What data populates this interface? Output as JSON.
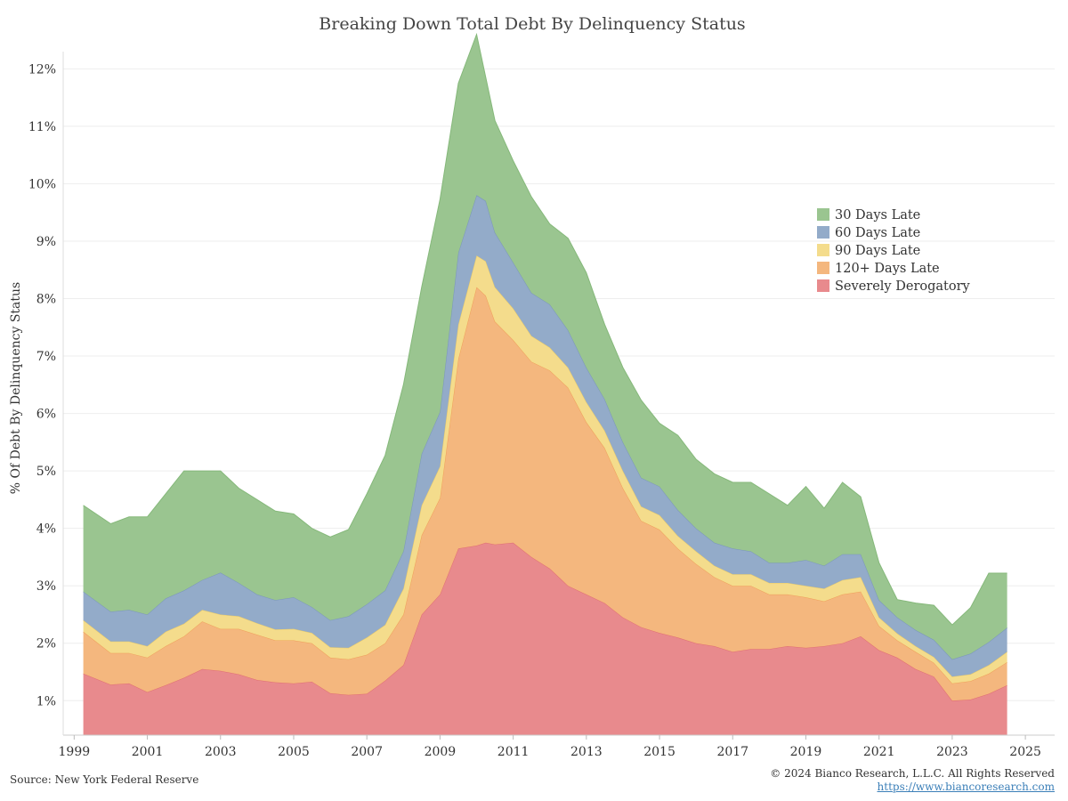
{
  "chart_data": {
    "type": "area",
    "stacked": true,
    "title": "Breaking Down Total Debt By Delinquency Status",
    "ylabel": "% Of Debt By Delinquency Status",
    "xlabel": "",
    "ylim": [
      0.4,
      12.3
    ],
    "xlim": [
      1998.7,
      2025.8
    ],
    "yticks": [
      1,
      2,
      3,
      4,
      5,
      6,
      7,
      8,
      9,
      10,
      11,
      12
    ],
    "ytick_labels": [
      "1%",
      "2%",
      "3%",
      "4%",
      "5%",
      "6%",
      "7%",
      "8%",
      "9%",
      "10%",
      "11%",
      "12%"
    ],
    "xticks": [
      1999,
      2001,
      2003,
      2005,
      2007,
      2009,
      2011,
      2013,
      2015,
      2017,
      2019,
      2021,
      2023,
      2025
    ],
    "xtick_labels": [
      "1999",
      "2001",
      "2003",
      "2005",
      "2007",
      "2009",
      "2011",
      "2013",
      "2015",
      "2017",
      "2019",
      "2021",
      "2023",
      "2025"
    ],
    "grid": "horizontal",
    "legend_position": "top-right",
    "x": [
      1999.25,
      2000.0,
      2000.5,
      2001.0,
      2001.5,
      2002.0,
      2002.5,
      2003.0,
      2003.5,
      2004.0,
      2004.5,
      2005.0,
      2005.5,
      2006.0,
      2006.5,
      2007.0,
      2007.5,
      2008.0,
      2008.5,
      2009.0,
      2009.5,
      2010.0,
      2010.25,
      2010.5,
      2011.0,
      2011.5,
      2012.0,
      2012.5,
      2013.0,
      2013.5,
      2014.0,
      2014.5,
      2015.0,
      2015.5,
      2016.0,
      2016.5,
      2017.0,
      2017.5,
      2018.0,
      2018.5,
      2019.0,
      2019.5,
      2020.0,
      2020.5,
      2021.0,
      2021.5,
      2022.0,
      2022.5,
      2023.0,
      2023.5,
      2024.0,
      2024.5
    ],
    "series": [
      {
        "name": "Severely Derogatory",
        "color": "#e88a8d",
        "edge": "#e06e72",
        "values": [
          1.47,
          1.28,
          1.3,
          1.15,
          1.27,
          1.4,
          1.55,
          1.52,
          1.46,
          1.36,
          1.32,
          1.3,
          1.33,
          1.13,
          1.1,
          1.12,
          1.35,
          1.62,
          2.5,
          2.85,
          3.65,
          3.7,
          3.75,
          3.72,
          3.75,
          3.5,
          3.3,
          3.0,
          2.85,
          2.7,
          2.45,
          2.28,
          2.18,
          2.1,
          2.0,
          1.95,
          1.85,
          1.9,
          1.9,
          1.95,
          1.92,
          1.95,
          2.0,
          2.12,
          1.88,
          1.75,
          1.55,
          1.42,
          1.0,
          1.02,
          1.12,
          1.27
        ]
      },
      {
        "name": "120+ Days Late",
        "color": "#f4b77e",
        "edge": "#ef9f5a",
        "values": [
          0.73,
          0.55,
          0.53,
          0.6,
          0.68,
          0.72,
          0.83,
          0.73,
          0.79,
          0.79,
          0.73,
          0.75,
          0.67,
          0.62,
          0.62,
          0.68,
          0.65,
          0.88,
          1.38,
          1.68,
          3.3,
          4.5,
          4.3,
          3.88,
          3.53,
          3.4,
          3.45,
          3.45,
          3.0,
          2.7,
          2.25,
          1.85,
          1.8,
          1.55,
          1.38,
          1.2,
          1.15,
          1.1,
          0.95,
          0.9,
          0.88,
          0.78,
          0.85,
          0.78,
          0.42,
          0.3,
          0.3,
          0.24,
          0.3,
          0.32,
          0.35,
          0.4
        ]
      },
      {
        "name": "90 Days Late",
        "color": "#f4dc8c",
        "edge": "#ebcb66",
        "values": [
          0.2,
          0.2,
          0.2,
          0.2,
          0.25,
          0.22,
          0.2,
          0.25,
          0.22,
          0.2,
          0.19,
          0.2,
          0.18,
          0.18,
          0.2,
          0.3,
          0.32,
          0.45,
          0.52,
          0.55,
          0.6,
          0.55,
          0.6,
          0.6,
          0.55,
          0.45,
          0.4,
          0.35,
          0.35,
          0.3,
          0.3,
          0.25,
          0.25,
          0.22,
          0.22,
          0.2,
          0.2,
          0.2,
          0.2,
          0.2,
          0.2,
          0.22,
          0.25,
          0.25,
          0.15,
          0.12,
          0.1,
          0.1,
          0.12,
          0.12,
          0.15,
          0.18
        ]
      },
      {
        "name": "60 Days Late",
        "color": "#93abc9",
        "edge": "#7a96bb",
        "values": [
          0.5,
          0.52,
          0.55,
          0.55,
          0.58,
          0.58,
          0.52,
          0.73,
          0.58,
          0.5,
          0.51,
          0.55,
          0.45,
          0.47,
          0.55,
          0.58,
          0.6,
          0.65,
          0.9,
          0.95,
          1.25,
          1.05,
          1.05,
          0.95,
          0.8,
          0.75,
          0.75,
          0.65,
          0.6,
          0.55,
          0.5,
          0.5,
          0.5,
          0.45,
          0.4,
          0.4,
          0.45,
          0.4,
          0.35,
          0.35,
          0.45,
          0.4,
          0.45,
          0.4,
          0.3,
          0.28,
          0.28,
          0.3,
          0.3,
          0.36,
          0.4,
          0.42
        ]
      },
      {
        "name": "30 Days Late",
        "color": "#9ac590",
        "edge": "#85b87a",
        "values": [
          1.5,
          1.53,
          1.62,
          1.7,
          1.82,
          2.08,
          1.9,
          1.77,
          1.65,
          1.65,
          1.55,
          1.45,
          1.37,
          1.45,
          1.51,
          1.92,
          2.35,
          2.9,
          2.9,
          3.7,
          2.95,
          2.8,
          2.15,
          1.95,
          1.77,
          1.67,
          1.4,
          1.6,
          1.65,
          1.3,
          1.3,
          1.35,
          1.1,
          1.3,
          1.2,
          1.2,
          1.15,
          1.2,
          1.2,
          1.0,
          1.28,
          1.0,
          1.25,
          1.0,
          0.65,
          0.31,
          0.47,
          0.6,
          0.6,
          0.8,
          1.2,
          0.95
        ]
      }
    ],
    "legend_order": [
      "30 Days Late",
      "60 Days Late",
      "90 Days Late",
      "120+ Days Late",
      "Severely Derogatory"
    ]
  },
  "footer": {
    "source": "Source: New York Federal Reserve",
    "copyright": "© 2024 Bianco Research, L.L.C. All Rights Reserved",
    "url": "https://www.biancoresearch.com"
  }
}
